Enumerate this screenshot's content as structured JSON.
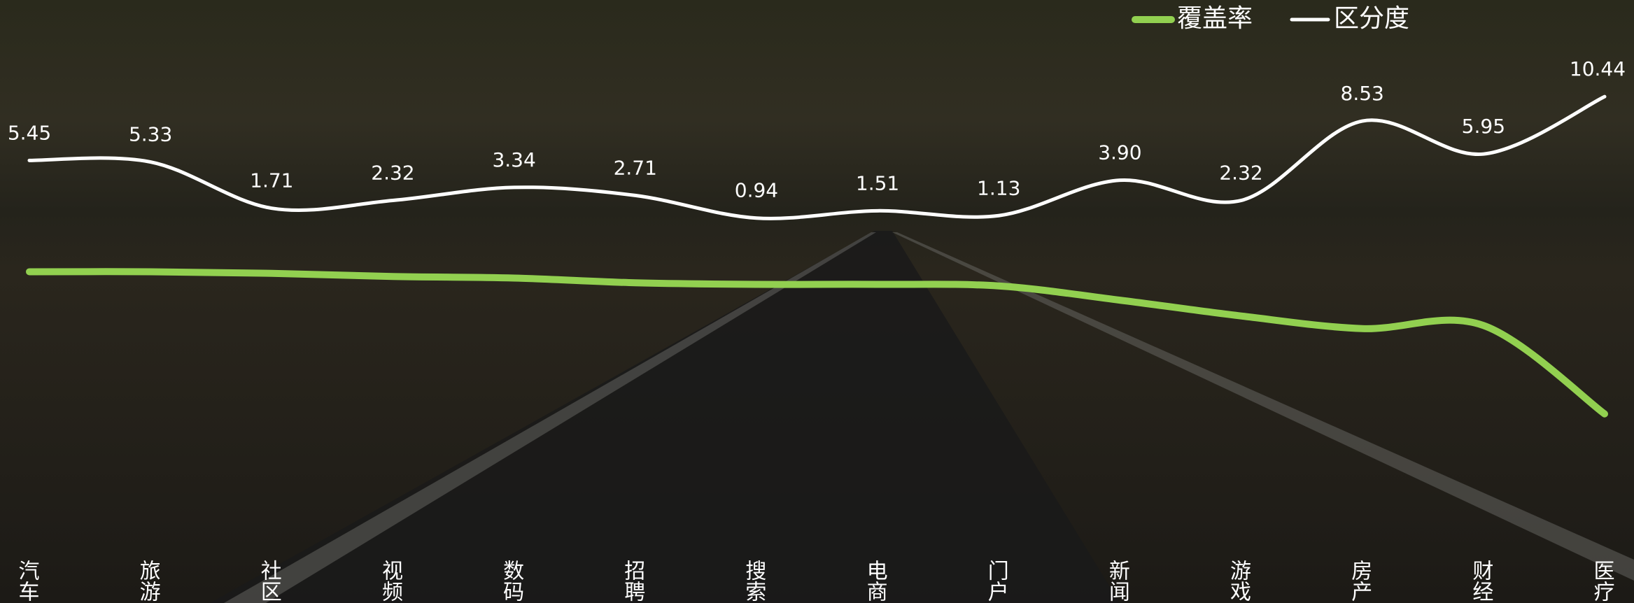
{
  "chart_data": {
    "type": "line",
    "categories": [
      "汽车",
      "旅游",
      "社区",
      "视频",
      "数码",
      "招聘",
      "搜索",
      "电商",
      "门户",
      "新闻",
      "游戏",
      "房产",
      "财经",
      "医疗"
    ],
    "series": [
      {
        "name": "覆盖率",
        "color": "#92d050",
        "axis": "y2",
        "values": [
          100,
          100,
          99.5,
          98.5,
          98,
          96.5,
          96,
          96,
          95.5,
          91,
          86,
          82,
          83,
          55
        ]
      },
      {
        "name": "区分度",
        "color": "#ffffff",
        "values": [
          5.45,
          5.33,
          1.71,
          2.32,
          3.34,
          2.71,
          0.94,
          1.51,
          1.13,
          3.9,
          2.32,
          8.53,
          5.95,
          10.44
        ],
        "value_labels": [
          "5.45",
          "5.33",
          "1.71",
          "2.32",
          "3.34",
          "2.71",
          "0.94",
          "1.51",
          "1.13",
          "3.90",
          "2.32",
          "8.53",
          "5.95",
          "10.44"
        ]
      }
    ],
    "ylim": [
      -26,
      18
    ],
    "y2lim": [
      8,
      186
    ],
    "legend": "top-right"
  }
}
